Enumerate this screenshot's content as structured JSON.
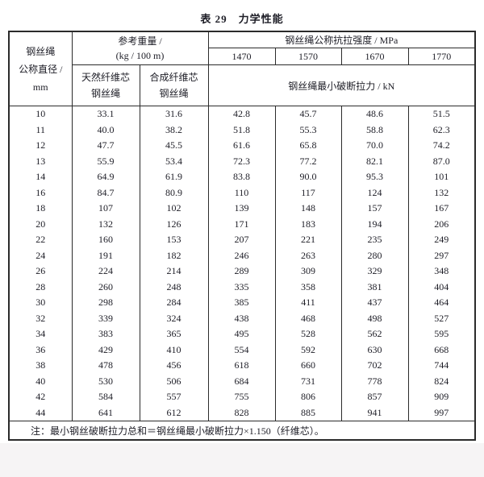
{
  "page": {
    "title": "表 29　力学性能",
    "background_color": "#ffffff",
    "footer_strip_color": "#f6f4f5",
    "border_color": "#2b2b2b",
    "text_color": "#1d1d26"
  },
  "table": {
    "header": {
      "diameter_line1": "钢丝绳",
      "diameter_line2": "公称直径 /",
      "diameter_line3": "mm",
      "weight_line1": "参考重量 /",
      "weight_line2": "(kg / 100 m)",
      "natural_core_line1": "天然纤维芯",
      "natural_core_line2": "钢丝绳",
      "synthetic_core_line1": "合成纤维芯",
      "synthetic_core_line2": "钢丝绳",
      "tensile_strength_title": "钢丝绳公称抗拉强度 / MPa",
      "strength_grades": [
        "1470",
        "1570",
        "1670",
        "1770"
      ],
      "breaking_force_title": "钢丝绳最小破断拉力 / kN"
    },
    "rows": [
      [
        "10",
        "33.1",
        "31.6",
        "42.8",
        "45.7",
        "48.6",
        "51.5"
      ],
      [
        "11",
        "40.0",
        "38.2",
        "51.8",
        "55.3",
        "58.8",
        "62.3"
      ],
      [
        "12",
        "47.7",
        "45.5",
        "61.6",
        "65.8",
        "70.0",
        "74.2"
      ],
      [
        "13",
        "55.9",
        "53.4",
        "72.3",
        "77.2",
        "82.1",
        "87.0"
      ],
      [
        "14",
        "64.9",
        "61.9",
        "83.8",
        "90.0",
        "95.3",
        "101"
      ],
      [
        "16",
        "84.7",
        "80.9",
        "110",
        "117",
        "124",
        "132"
      ],
      [
        "18",
        "107",
        "102",
        "139",
        "148",
        "157",
        "167"
      ],
      [
        "20",
        "132",
        "126",
        "171",
        "183",
        "194",
        "206"
      ],
      [
        "22",
        "160",
        "153",
        "207",
        "221",
        "235",
        "249"
      ],
      [
        "24",
        "191",
        "182",
        "246",
        "263",
        "280",
        "297"
      ],
      [
        "26",
        "224",
        "214",
        "289",
        "309",
        "329",
        "348"
      ],
      [
        "28",
        "260",
        "248",
        "335",
        "358",
        "381",
        "404"
      ],
      [
        "30",
        "298",
        "284",
        "385",
        "411",
        "437",
        "464"
      ],
      [
        "32",
        "339",
        "324",
        "438",
        "468",
        "498",
        "527"
      ],
      [
        "34",
        "383",
        "365",
        "495",
        "528",
        "562",
        "595"
      ],
      [
        "36",
        "429",
        "410",
        "554",
        "592",
        "630",
        "668"
      ],
      [
        "38",
        "478",
        "456",
        "618",
        "660",
        "702",
        "744"
      ],
      [
        "40",
        "530",
        "506",
        "684",
        "731",
        "778",
        "824"
      ],
      [
        "42",
        "584",
        "557",
        "755",
        "806",
        "857",
        "909"
      ],
      [
        "44",
        "641",
        "612",
        "828",
        "885",
        "941",
        "997"
      ]
    ],
    "note": "注：最小钢丝破断拉力总和＝钢丝绳最小破断拉力×1.150（纤维芯）。"
  }
}
